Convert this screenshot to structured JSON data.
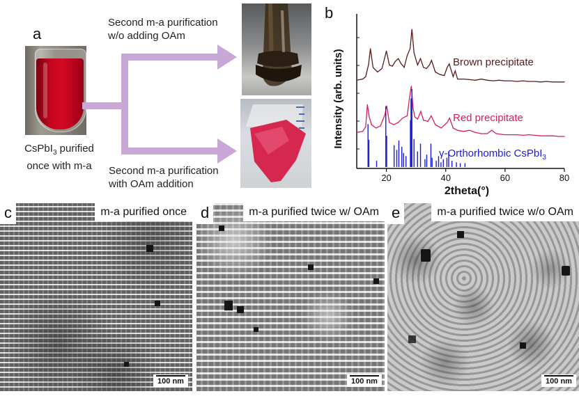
{
  "panel_a": {
    "letter": "a",
    "vial_caption_line1_prefix": "CsPbI",
    "vial_caption_line1_sub": "3",
    "vial_caption_line1_suffix": " purified",
    "vial_caption_line2": "once with m-a",
    "top_branch_line1": "Second m-a purification",
    "top_branch_line2": "w/o adding OAm",
    "bottom_branch_line1": "Second m-a purification",
    "bottom_branch_line2": "with OAm addition",
    "arrow_color": "#c9a8d8"
  },
  "panel_b": {
    "letter": "b",
    "ylabel": "Intensity (arb. units)",
    "xlabel": "2theta(°)",
    "xticks": [
      "20",
      "40",
      "60",
      "80"
    ]
  },
  "chart_data": {
    "type": "line",
    "xlabel": "2theta(°)",
    "ylabel": "Intensity (arb. units)",
    "xlim": [
      10,
      80
    ],
    "xticks": [
      20,
      40,
      60,
      80
    ],
    "series": [
      {
        "name": "Brown precipitate",
        "color": "#5a1a1a",
        "x": [
          10,
          12,
          13,
          14,
          14.6,
          15.5,
          17,
          18.5,
          20,
          21,
          22,
          23,
          24,
          25,
          26,
          27,
          28,
          28.6,
          29.3,
          30.5,
          31.5,
          32.5,
          33.5,
          34.5,
          35.2,
          36.5,
          38,
          39.5,
          40.5,
          41.2,
          42.5,
          43.2,
          44,
          46,
          48,
          50,
          52,
          54,
          56,
          58,
          60,
          62,
          64,
          66,
          68,
          70,
          72,
          74,
          76,
          78,
          80
        ],
        "y": [
          0.08,
          0.1,
          0.14,
          0.35,
          0.62,
          0.3,
          0.22,
          0.28,
          0.58,
          0.34,
          0.32,
          0.4,
          0.45,
          0.36,
          0.3,
          0.5,
          0.62,
          0.95,
          0.55,
          0.34,
          0.45,
          0.3,
          0.28,
          0.34,
          0.42,
          0.22,
          0.18,
          0.16,
          0.3,
          0.36,
          0.14,
          0.24,
          0.1,
          0.1,
          0.09,
          0.08,
          0.1,
          0.08,
          0.07,
          0.08,
          0.07,
          0.07,
          0.06,
          0.07,
          0.06,
          0.06,
          0.05,
          0.06,
          0.05,
          0.05,
          0.05
        ]
      },
      {
        "name": "Red precipitate",
        "color": "#d81e5b",
        "x": [
          10,
          12,
          13,
          13.6,
          14.2,
          15,
          16.5,
          18,
          19.5,
          20.1,
          21,
          22.5,
          24,
          25.5,
          27,
          27.8,
          28.4,
          29,
          29.6,
          30.5,
          31.6,
          32.5,
          34,
          35.1,
          36.5,
          38.5,
          40.5,
          41.3,
          42.5,
          44,
          46,
          48,
          50,
          52,
          54,
          55.5,
          57,
          60,
          62,
          64,
          66,
          68,
          70,
          72,
          74,
          76,
          78,
          80
        ],
        "y": [
          0.12,
          0.14,
          0.22,
          0.62,
          0.4,
          0.26,
          0.2,
          0.24,
          0.44,
          0.6,
          0.3,
          0.26,
          0.3,
          0.38,
          0.42,
          0.75,
          0.95,
          0.55,
          0.4,
          0.36,
          0.5,
          0.34,
          0.32,
          0.42,
          0.26,
          0.2,
          0.3,
          0.38,
          0.2,
          0.16,
          0.14,
          0.16,
          0.12,
          0.1,
          0.1,
          0.16,
          0.1,
          0.08,
          0.08,
          0.08,
          0.07,
          0.08,
          0.07,
          0.06,
          0.06,
          0.06,
          0.05,
          0.05
        ]
      },
      {
        "name": "γ-Orthorhombic CsPbI3",
        "type": "stick",
        "color": "#1a1adc",
        "x": [
          13.8,
          14.1,
          16.7,
          19.8,
          20.1,
          22.6,
          23.5,
          24.2,
          25.2,
          25.8,
          26.6,
          28.1,
          28.3,
          28.6,
          29.3,
          30.5,
          31.5,
          33.0,
          33.6,
          35.0,
          35.4,
          36.8,
          37.6,
          38.4,
          39.2,
          40.4,
          41.0,
          42.1,
          43.6,
          44.9,
          46.5
        ],
        "y": [
          0.55,
          0.35,
          0.08,
          0.78,
          0.4,
          0.28,
          0.22,
          0.34,
          0.26,
          0.18,
          0.14,
          0.6,
          0.88,
          1.0,
          0.36,
          0.2,
          0.3,
          0.1,
          0.16,
          0.3,
          0.12,
          0.08,
          0.14,
          0.06,
          0.1,
          0.12,
          0.2,
          0.08,
          0.06,
          0.05,
          0.05
        ]
      }
    ],
    "annotations": [
      "Brown precipitate",
      "Red precipitate",
      "γ-Orthorhombic CsPbI3"
    ]
  },
  "series_labels": {
    "brown": "Brown precipitate",
    "red": "Red precipitate",
    "ref_prefix": "γ-Orthorhombic CsPbI",
    "ref_sub": "3"
  },
  "tem_c": {
    "letter": "c",
    "label": "m-a purified once",
    "scale": "100 nm"
  },
  "tem_d": {
    "letter": "d",
    "label": "m-a purified twice w/ OAm",
    "scale": "100 nm"
  },
  "tem_e": {
    "letter": "e",
    "label": "m-a purified twice w/o OAm",
    "scale": "100 nm"
  }
}
